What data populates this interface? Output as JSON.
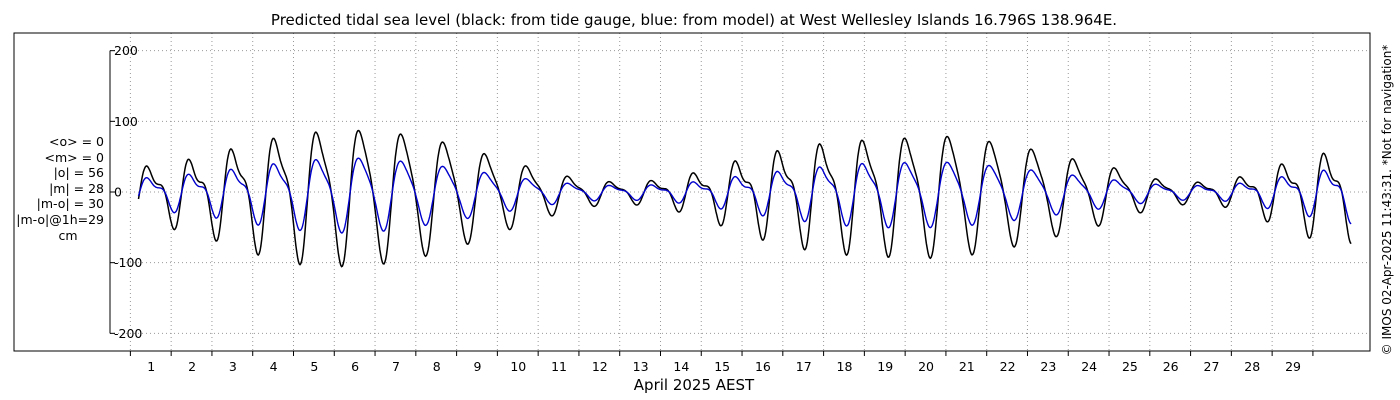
{
  "chart_data": {
    "type": "line",
    "title": "Predicted tidal sea level (black: from tide gauge, blue: from model) at West Wellesley Islands 16.796S 138.964E.",
    "xlabel": "April 2025 AEST",
    "ylabel": "",
    "xlim": [
      -0.5,
      30.4
    ],
    "ylim": [
      -225,
      225
    ],
    "yticks": [
      -200,
      -100,
      0,
      100,
      200
    ],
    "xticks": [
      1,
      2,
      3,
      4,
      5,
      6,
      7,
      8,
      9,
      10,
      11,
      12,
      13,
      14,
      15,
      16,
      17,
      18,
      19,
      20,
      21,
      22,
      23,
      24,
      25,
      26,
      27,
      28,
      29
    ],
    "xtick_labels": [
      "1",
      "2",
      "3",
      "4",
      "5",
      "6",
      "7",
      "8",
      "9",
      "10",
      "11",
      "12",
      "13",
      "14",
      "15",
      "16",
      "17",
      "18",
      "19",
      "20",
      "21",
      "22",
      "23",
      "24",
      "25",
      "26",
      "27",
      "28",
      "29"
    ],
    "grid": true,
    "colors": {
      "gauge": "#000000",
      "model": "#0000cc",
      "grid": "#999999"
    },
    "series": [
      {
        "key": "gauge",
        "x": [
          0.2,
          0.9,
          2.0,
          3.0,
          4.0,
          4.95,
          5.95,
          7.05,
          8.05,
          9.05,
          10.1,
          11.1,
          12.1,
          13.1,
          14.1,
          15.1,
          16.1,
          17.1,
          18.05,
          19.05,
          20.05,
          21.05,
          22.05,
          23.05,
          24.1,
          25.05,
          26.0,
          27.0,
          28.0,
          29.0,
          29.75
        ],
        "amplitude": [
          40,
          45,
          60,
          80,
          95,
          100,
          100,
          90,
          75,
          55,
          35,
          20,
          15,
          20,
          35,
          55,
          70,
          80,
          85,
          88,
          90,
          82,
          70,
          55,
          40,
          22,
          15,
          20,
          40,
          60,
          65
        ],
        "secondary": [
          0.45,
          0.45,
          0.45,
          0.35,
          0.3,
          0.25,
          0.2,
          0.2,
          0.2,
          0.25,
          0.3,
          0.35,
          0.4,
          0.45,
          0.45,
          0.45,
          0.4,
          0.35,
          0.3,
          0.25,
          0.2,
          0.2,
          0.2,
          0.25,
          0.3,
          0.35,
          0.4,
          0.45,
          0.45,
          0.45,
          0.45
        ]
      },
      {
        "key": "model",
        "x": [
          0.2,
          0.9,
          2.0,
          3.0,
          4.0,
          4.95,
          5.95,
          7.05,
          8.05,
          9.05,
          10.1,
          11.1,
          12.1,
          13.1,
          14.1,
          15.1,
          16.1,
          17.1,
          18.05,
          19.05,
          20.05,
          21.05,
          22.05,
          23.05,
          24.1,
          25.05,
          26.0,
          27.0,
          28.0,
          29.0,
          29.75
        ],
        "amplitude": [
          22,
          25,
          32,
          42,
          50,
          55,
          55,
          47,
          38,
          28,
          18,
          12,
          10,
          12,
          18,
          27,
          35,
          42,
          47,
          48,
          48,
          43,
          36,
          28,
          20,
          13,
          10,
          12,
          22,
          32,
          40
        ],
        "secondary": [
          0.45,
          0.45,
          0.45,
          0.35,
          0.3,
          0.25,
          0.2,
          0.2,
          0.2,
          0.25,
          0.3,
          0.35,
          0.4,
          0.45,
          0.45,
          0.45,
          0.4,
          0.35,
          0.3,
          0.25,
          0.2,
          0.2,
          0.2,
          0.25,
          0.3,
          0.35,
          0.4,
          0.45,
          0.45,
          0.45,
          0.45
        ]
      }
    ],
    "stats": [
      "<o> = 0",
      "<m> = 0",
      "|o| = 56",
      "|m| = 28",
      "|m-o| = 30",
      "|m-o|@1h=29"
    ],
    "unit": "cm",
    "credit": "© IMOS 02-Apr-2025 11:43:31. *Not for navigation*"
  }
}
